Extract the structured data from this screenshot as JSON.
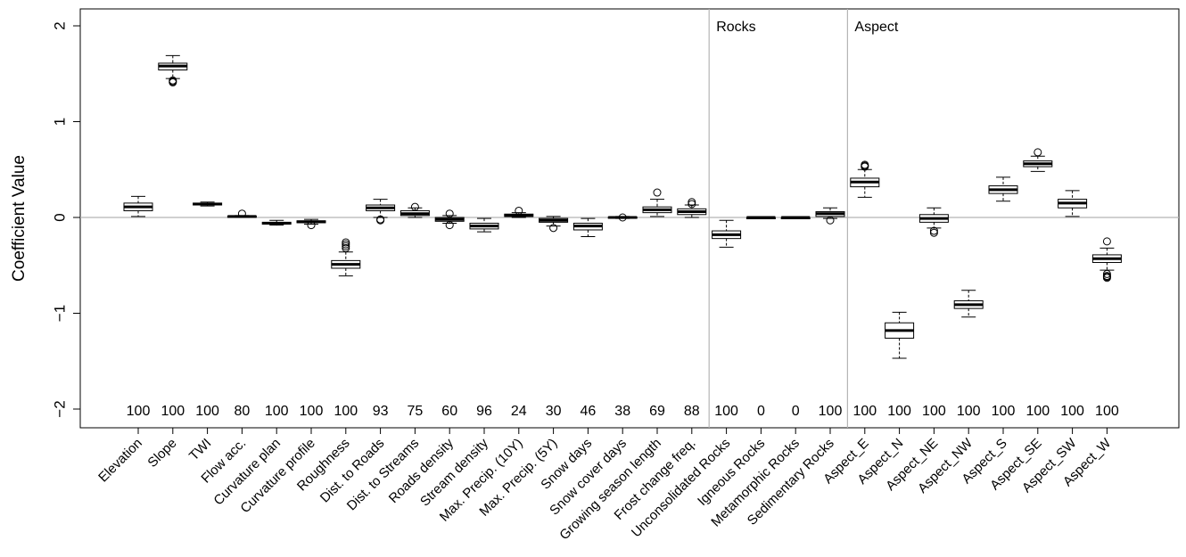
{
  "chart_data": {
    "type": "boxplot",
    "ylabel": "Coefficient Value",
    "xlabel": "",
    "ylim": [
      -2.2,
      2.15
    ],
    "yticks": [
      -2,
      -1,
      0,
      1,
      2
    ],
    "reference_line": 0,
    "groups": [
      {
        "label": "Rocks",
        "starts_at": "Unconsolidated Rocks"
      },
      {
        "label": "Aspect",
        "starts_at": "Aspect_E"
      }
    ],
    "categories": [
      "Elevation",
      "Slope",
      "TWI",
      "Flow acc.",
      "Curvature plan",
      "Curvature profile",
      "Roughness",
      "Dist. to Roads",
      "Dist. to Streams",
      "Roads density",
      "Stream density",
      "Max. Precip. (10Y)",
      "Max. Precip. (5Y)",
      "Snow days",
      "Snow cover days",
      "Growing season length",
      "Frost change freq.",
      "Unconsolidated Rocks",
      "Igneous Rocks",
      "Metamorphic Rocks",
      "Sedimentary Rocks",
      "Aspect_E",
      "Aspect_N",
      "Aspect_NE",
      "Aspect_NW",
      "Aspect_S",
      "Aspect_SE",
      "Aspect_SW",
      "Aspect_W"
    ],
    "counts": [
      "100",
      "100",
      "100",
      "80",
      "100",
      "100",
      "100",
      "93",
      "75",
      "60",
      "96",
      "24",
      "30",
      "46",
      "38",
      "69",
      "88",
      "100",
      "0",
      "0",
      "100",
      "100",
      "100",
      "100",
      "100",
      "100",
      "100",
      "100",
      "100"
    ],
    "boxes": [
      {
        "whisker_low": 0.01,
        "q1": 0.07,
        "median": 0.11,
        "q3": 0.15,
        "whisker_high": 0.22,
        "outliers": []
      },
      {
        "whisker_low": 1.45,
        "q1": 1.54,
        "median": 1.58,
        "q3": 1.61,
        "whisker_high": 1.69,
        "outliers": [
          1.42,
          1.43,
          1.41
        ]
      },
      {
        "whisker_low": 0.12,
        "q1": 0.13,
        "median": 0.14,
        "q3": 0.15,
        "whisker_high": 0.16,
        "outliers": []
      },
      {
        "whisker_low": 0.0,
        "q1": 0.005,
        "median": 0.01,
        "q3": 0.015,
        "whisker_high": 0.02,
        "outliers": [
          0.04
        ]
      },
      {
        "whisker_low": -0.08,
        "q1": -0.07,
        "median": -0.06,
        "q3": -0.05,
        "whisker_high": -0.03,
        "outliers": []
      },
      {
        "whisker_low": -0.07,
        "q1": -0.055,
        "median": -0.045,
        "q3": -0.035,
        "whisker_high": -0.02,
        "outliers": [
          -0.08
        ]
      },
      {
        "whisker_low": -0.61,
        "q1": -0.53,
        "median": -0.49,
        "q3": -0.45,
        "whisker_high": -0.36,
        "outliers": [
          -0.32,
          -0.3,
          -0.28,
          -0.26
        ]
      },
      {
        "whisker_low": 0.0,
        "q1": 0.07,
        "median": 0.1,
        "q3": 0.13,
        "whisker_high": 0.19,
        "outliers": [
          -0.03,
          -0.02
        ]
      },
      {
        "whisker_low": 0.0,
        "q1": 0.02,
        "median": 0.04,
        "q3": 0.07,
        "whisker_high": 0.1,
        "outliers": [
          0.11
        ]
      },
      {
        "whisker_low": -0.06,
        "q1": -0.04,
        "median": -0.02,
        "q3": 0.0,
        "whisker_high": 0.02,
        "outliers": [
          0.04,
          -0.08
        ]
      },
      {
        "whisker_low": -0.15,
        "q1": -0.12,
        "median": -0.09,
        "q3": -0.06,
        "whisker_high": -0.01,
        "outliers": []
      },
      {
        "whisker_low": 0.0,
        "q1": 0.01,
        "median": 0.02,
        "q3": 0.035,
        "whisker_high": 0.05,
        "outliers": [
          0.07
        ]
      },
      {
        "whisker_low": -0.09,
        "q1": -0.05,
        "median": -0.03,
        "q3": -0.01,
        "whisker_high": 0.01,
        "outliers": [
          -0.11
        ]
      },
      {
        "whisker_low": -0.2,
        "q1": -0.13,
        "median": -0.09,
        "q3": -0.06,
        "whisker_high": -0.01,
        "outliers": []
      },
      {
        "whisker_low": -0.01,
        "q1": -0.005,
        "median": 0.0,
        "q3": 0.005,
        "whisker_high": 0.01,
        "outliers": [
          0.0
        ]
      },
      {
        "whisker_low": 0.01,
        "q1": 0.05,
        "median": 0.08,
        "q3": 0.11,
        "whisker_high": 0.19,
        "outliers": [
          0.26
        ]
      },
      {
        "whisker_low": 0.0,
        "q1": 0.03,
        "median": 0.06,
        "q3": 0.09,
        "whisker_high": 0.13,
        "outliers": [
          0.16,
          0.14
        ]
      },
      {
        "whisker_low": -0.31,
        "q1": -0.22,
        "median": -0.18,
        "q3": -0.14,
        "whisker_high": -0.03,
        "outliers": []
      },
      {
        "whisker_low": 0.0,
        "q1": 0.0,
        "median": 0.0,
        "q3": 0.0,
        "whisker_high": 0.0,
        "outliers": []
      },
      {
        "whisker_low": 0.0,
        "q1": 0.0,
        "median": 0.0,
        "q3": 0.0,
        "whisker_high": 0.0,
        "outliers": []
      },
      {
        "whisker_low": -0.01,
        "q1": 0.01,
        "median": 0.04,
        "q3": 0.06,
        "whisker_high": 0.1,
        "outliers": [
          -0.03
        ]
      },
      {
        "whisker_low": 0.21,
        "q1": 0.32,
        "median": 0.37,
        "q3": 0.41,
        "whisker_high": 0.5,
        "outliers": [
          0.53,
          0.54,
          0.55
        ]
      },
      {
        "whisker_low": -1.47,
        "q1": -1.26,
        "median": -1.18,
        "q3": -1.1,
        "whisker_high": -0.99,
        "outliers": []
      },
      {
        "whisker_low": -0.11,
        "q1": -0.05,
        "median": -0.01,
        "q3": 0.03,
        "whisker_high": 0.1,
        "outliers": [
          -0.14,
          -0.16
        ]
      },
      {
        "whisker_low": -1.04,
        "q1": -0.95,
        "median": -0.91,
        "q3": -0.87,
        "whisker_high": -0.76,
        "outliers": []
      },
      {
        "whisker_low": 0.17,
        "q1": 0.25,
        "median": 0.29,
        "q3": 0.33,
        "whisker_high": 0.42,
        "outliers": []
      },
      {
        "whisker_low": 0.48,
        "q1": 0.53,
        "median": 0.56,
        "q3": 0.59,
        "whisker_high": 0.64,
        "outliers": [
          0.68
        ]
      },
      {
        "whisker_low": 0.01,
        "q1": 0.1,
        "median": 0.15,
        "q3": 0.19,
        "whisker_high": 0.28,
        "outliers": []
      },
      {
        "whisker_low": -0.55,
        "q1": -0.47,
        "median": -0.43,
        "q3": -0.39,
        "whisker_high": -0.32,
        "outliers": [
          -0.25,
          -0.59,
          -0.61,
          -0.62,
          -0.63
        ]
      }
    ]
  }
}
